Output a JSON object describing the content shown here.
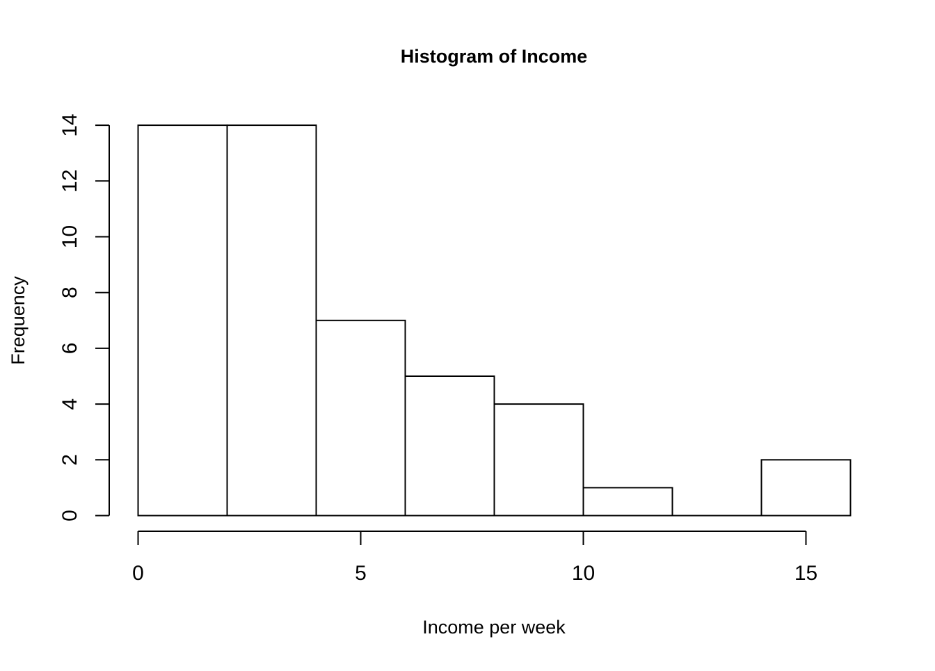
{
  "chart_data": {
    "type": "bar",
    "title": "Histogram of Income",
    "xlabel": "Income per week",
    "ylabel": "Frequency",
    "bins": [
      {
        "start": 0,
        "end": 2,
        "count": 14
      },
      {
        "start": 2,
        "end": 4,
        "count": 14
      },
      {
        "start": 4,
        "end": 6,
        "count": 7
      },
      {
        "start": 6,
        "end": 8,
        "count": 5
      },
      {
        "start": 8,
        "end": 10,
        "count": 4
      },
      {
        "start": 10,
        "end": 12,
        "count": 1
      },
      {
        "start": 12,
        "end": 14,
        "count": 0
      },
      {
        "start": 14,
        "end": 16,
        "count": 2
      }
    ],
    "xlim": [
      0,
      16
    ],
    "ylim": [
      0,
      14
    ],
    "x_ticks": [
      "0",
      "5",
      "10",
      "15"
    ],
    "y_ticks": [
      "0",
      "2",
      "4",
      "6",
      "8",
      "10",
      "12",
      "14"
    ],
    "grid": false,
    "colors": {
      "bar_fill": "#ffffff",
      "bar_stroke": "#000000"
    }
  }
}
